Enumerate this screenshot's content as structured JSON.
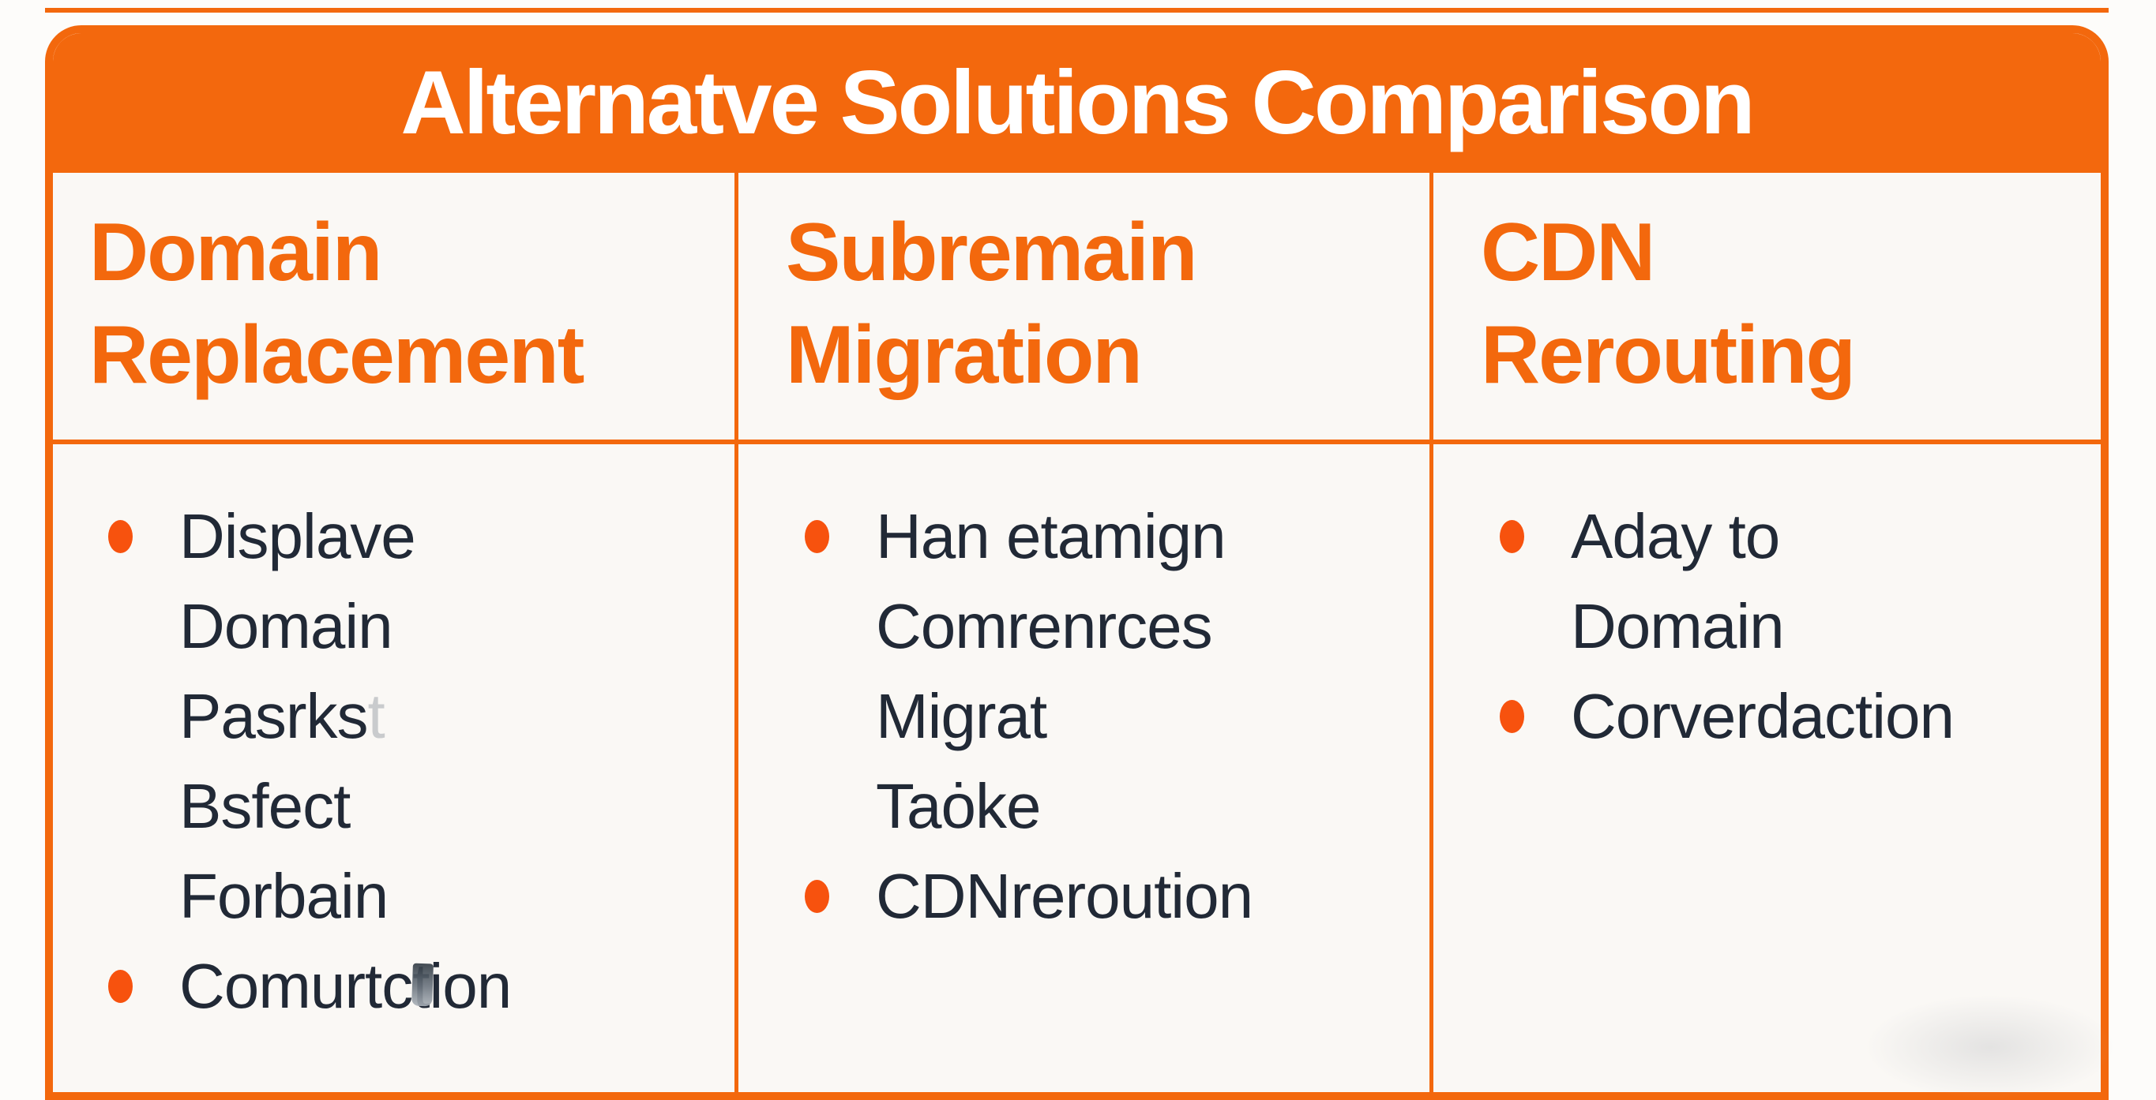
{
  "theme": {
    "accent_orange": "#F3680D",
    "bullet_orange": "#F7520E",
    "body_text": "#212936",
    "cell_background": "#FAF8F5",
    "page_background": "#FDFCFA",
    "faded_letter_color": "#C9CBCD",
    "title_text_color": "#FFFFFF"
  },
  "table": {
    "title": "Alternatve Solutions Comparison",
    "columns": [
      {
        "header_lines": [
          "Domain",
          "Replacement"
        ],
        "items": [
          {
            "lines": [
              "Displave",
              "Domain",
              "Pasrks",
              "Bsfect",
              "Forbain"
            ],
            "faded_suffix": "t"
          },
          {
            "lines": [
              "Comurtction"
            ]
          }
        ]
      },
      {
        "header_lines": [
          "Subremain",
          "Migration"
        ],
        "items": [
          {
            "lines": [
              "Han etamign",
              "Comrenrces",
              "Migrat",
              "Taȯke"
            ]
          },
          {
            "lines": [
              "CDNreroution"
            ]
          }
        ]
      },
      {
        "header_lines": [
          "CDN",
          "Rerouting"
        ],
        "items": [
          {
            "lines": [
              "Aday to",
              "Domain"
            ]
          },
          {
            "lines": [
              "Corverdaction"
            ]
          }
        ]
      }
    ]
  },
  "chart_data": {
    "type": "table",
    "title": "Alternatve Solutions Comparison",
    "columns": [
      "Domain Replacement",
      "Subremain Migration",
      "CDN Rerouting"
    ],
    "rows": [
      [
        "Displave Domain Pasrkst Bsfect Forbain",
        "Han etamign Comrenrces Migrat Taȯke",
        "Aday to Domain"
      ],
      [
        "Comurtction",
        "CDNreroution",
        "Corverdaction"
      ]
    ]
  }
}
